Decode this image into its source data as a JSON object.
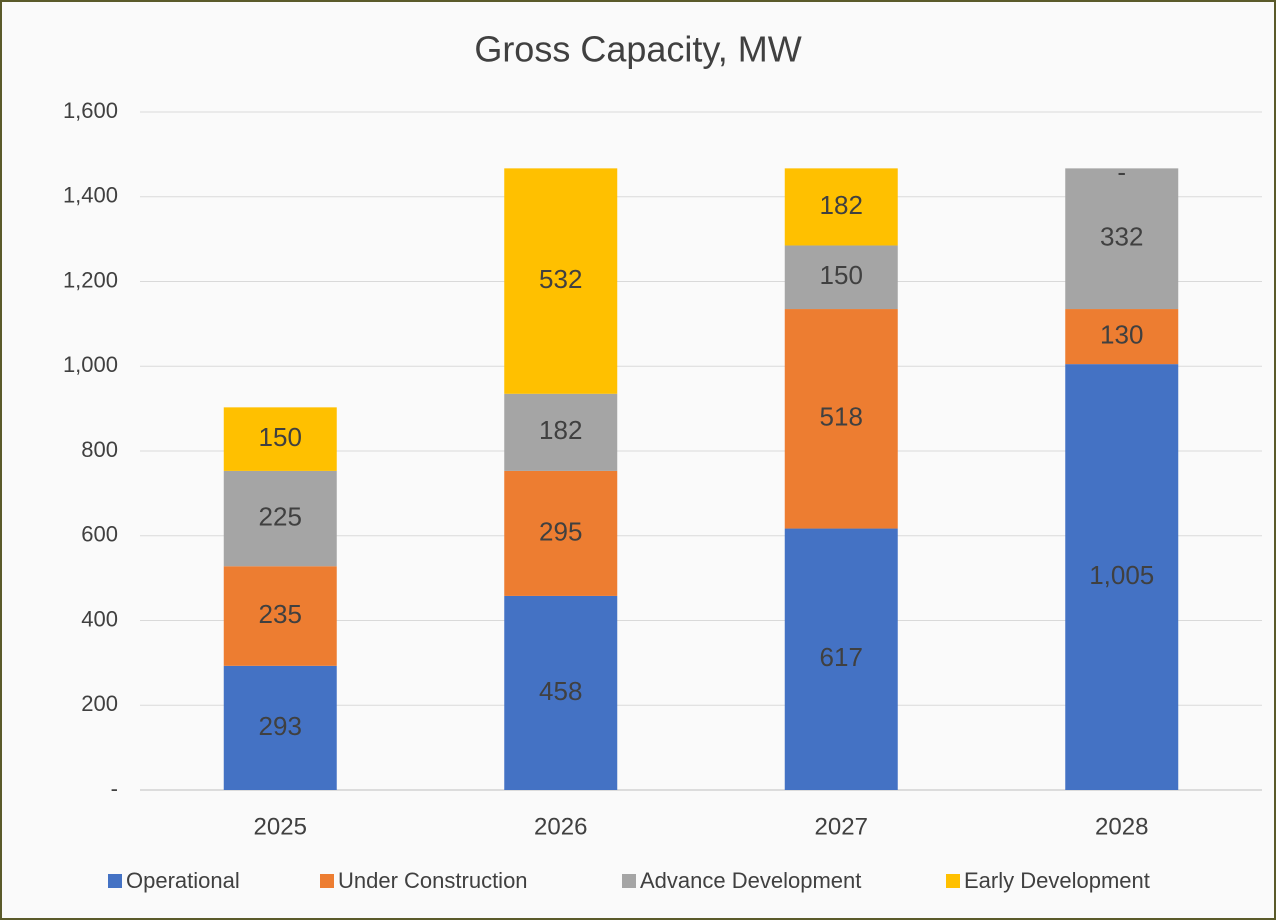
{
  "chart_data": {
    "type": "stacked_bar",
    "title": "Gross Capacity, MW",
    "categories": [
      "2025",
      "2026",
      "2027",
      "2028"
    ],
    "series": [
      {
        "name": "Operational",
        "color": "#4472c4",
        "values": [
          293,
          458,
          617,
          1005
        ],
        "value_labels": [
          "293",
          "458",
          "617",
          "1,005"
        ]
      },
      {
        "name": "Under Construction",
        "color": "#ed7d31",
        "values": [
          235,
          295,
          518,
          130
        ]
      },
      {
        "name": "Advance Development",
        "color": "#a5a5a5",
        "values": [
          225,
          182,
          150,
          332
        ]
      },
      {
        "name": "Early Development",
        "color": "#ffc000",
        "values": [
          150,
          532,
          182,
          0
        ],
        "value_labels": [
          "150",
          "532",
          "182",
          "-"
        ]
      }
    ],
    "ylim": [
      0,
      1600
    ],
    "yticks": [
      {
        "value": 0,
        "label": "-"
      },
      200,
      400,
      600,
      800,
      {
        "value": 1000,
        "label": "1,000"
      },
      {
        "value": 1200,
        "label": "1,200"
      },
      {
        "value": 1400,
        "label": "1,400"
      },
      {
        "value": 1600,
        "label": "1,600"
      }
    ],
    "grid": true,
    "legend": "bottom"
  }
}
